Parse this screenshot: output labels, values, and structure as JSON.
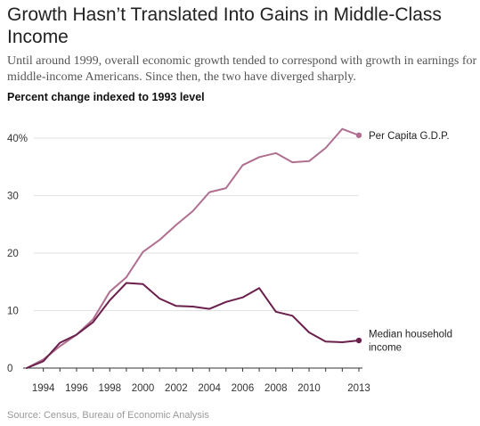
{
  "chart_data": {
    "type": "line",
    "title": "Growth Hasn’t Translated Into Gains in Middle-Class Income",
    "subtitle": "Until around 1999, overall economic growth tended to correspond with growth in earnings for middle-income Americans. Since then, the two have diverged sharply.",
    "ylabel": "Percent change indexed to 1993 level",
    "source": "Source: Census, Bureau of Economic Analysis",
    "xlim": [
      1993,
      2013
    ],
    "ylim": [
      0,
      40
    ],
    "x_ticks": [
      {
        "value": 1994,
        "label": "1994"
      },
      {
        "value": 1996,
        "label": "1996"
      },
      {
        "value": 1998,
        "label": "1998"
      },
      {
        "value": 2000,
        "label": "2000"
      },
      {
        "value": 2002,
        "label": "2002"
      },
      {
        "value": 2004,
        "label": "2004"
      },
      {
        "value": 2006,
        "label": "2006"
      },
      {
        "value": 2008,
        "label": "2008"
      },
      {
        "value": 2010,
        "label": "2010"
      },
      {
        "value": 2013,
        "label": "2013"
      }
    ],
    "y_ticks": [
      {
        "value": 0,
        "label": "0"
      },
      {
        "value": 10,
        "label": "10"
      },
      {
        "value": 20,
        "label": "20"
      },
      {
        "value": 30,
        "label": "30"
      },
      {
        "value": 40,
        "label": "40%"
      }
    ],
    "grid": true,
    "x": [
      1993,
      1994,
      1995,
      1996,
      1997,
      1998,
      1999,
      2000,
      2001,
      2002,
      2003,
      2004,
      2005,
      2006,
      2007,
      2008,
      2009,
      2010,
      2011,
      2012,
      2013
    ],
    "series": [
      {
        "name": "Per Capita G.D.P.",
        "label_lines": [
          "Per Capita G.D.P."
        ],
        "color": "#b06f8f",
        "values": [
          0,
          1.5,
          3.8,
          5.8,
          8.5,
          13.3,
          15.8,
          20.2,
          22.3,
          24.9,
          27.3,
          30.6,
          31.3,
          35.3,
          36.7,
          37.4,
          35.8,
          36.0,
          38.3,
          41.6,
          40.5
        ]
      },
      {
        "name": "Median household income",
        "label_lines": [
          "Median household",
          "income"
        ],
        "color": "#6b1f4c",
        "values": [
          0,
          1.2,
          4.4,
          5.8,
          8.0,
          11.8,
          14.8,
          14.6,
          12.1,
          10.8,
          10.7,
          10.3,
          11.5,
          12.3,
          13.9,
          9.8,
          9.1,
          6.2,
          4.6,
          4.5,
          4.8
        ]
      }
    ]
  }
}
